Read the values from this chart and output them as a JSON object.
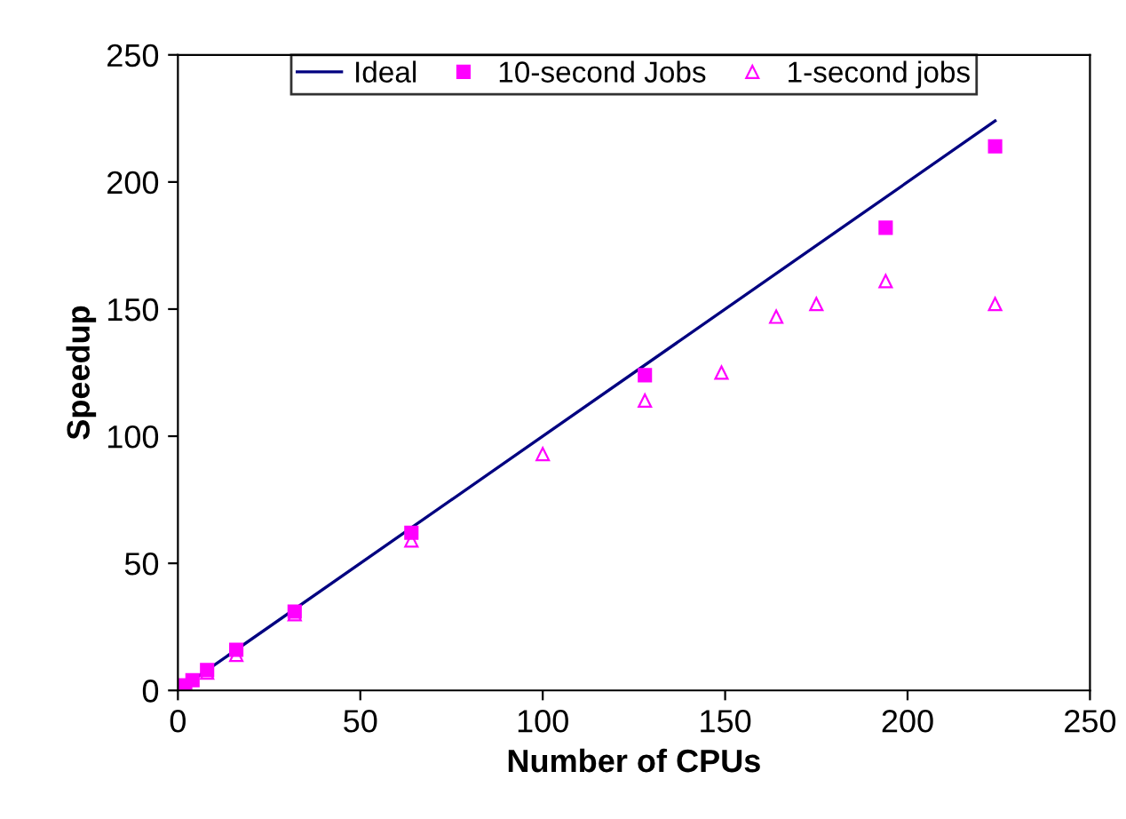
{
  "chart_data": {
    "type": "scatter",
    "xlabel": "Number of CPUs",
    "ylabel": "Speedup",
    "xlim": [
      0,
      250
    ],
    "ylim": [
      0,
      250
    ],
    "xticks": [
      0,
      50,
      100,
      150,
      200,
      250
    ],
    "yticks": [
      0,
      50,
      100,
      150,
      200,
      250
    ],
    "grid": false,
    "legend": "top",
    "series": [
      {
        "name": "Ideal",
        "type": "line",
        "color": "#000080",
        "marker": "none",
        "line_style": "solid",
        "x": [
          1,
          224
        ],
        "values": [
          1,
          224
        ]
      },
      {
        "name": "10-second Jobs",
        "color": "#ff00ff",
        "marker": "square",
        "x": [
          2,
          4,
          8,
          16,
          32,
          64,
          128,
          194,
          224
        ],
        "values": [
          2,
          4,
          8,
          16,
          31,
          62,
          124,
          182,
          214
        ]
      },
      {
        "name": "1-second jobs",
        "color": "#ff00ff",
        "marker": "triangle",
        "x": [
          8,
          16,
          32,
          64,
          100,
          128,
          149,
          164,
          175,
          194,
          224
        ],
        "values": [
          7,
          14,
          30,
          59,
          93,
          114,
          125,
          147,
          152,
          161,
          152
        ]
      }
    ]
  }
}
